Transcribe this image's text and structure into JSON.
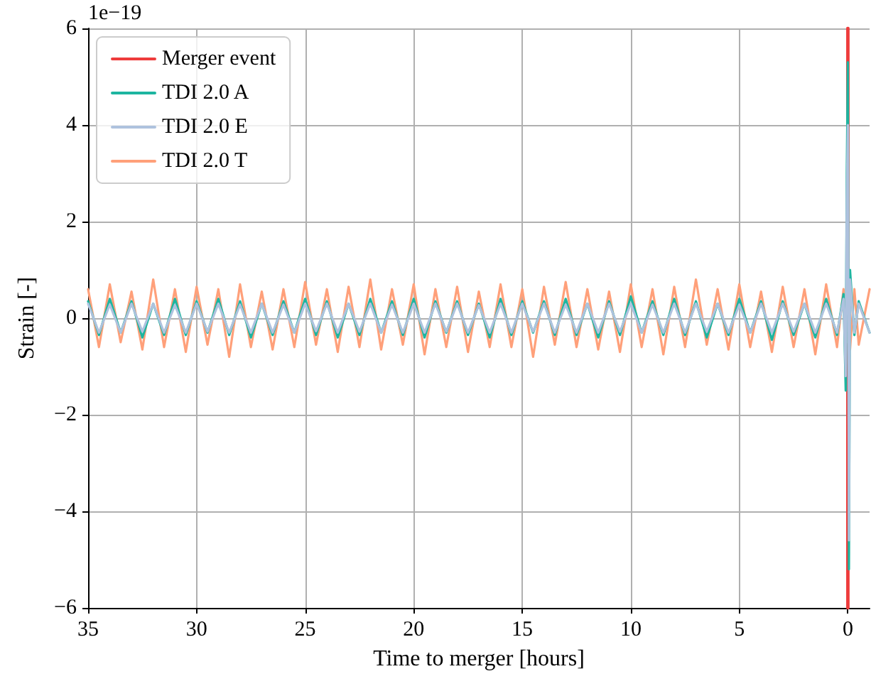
{
  "chart_data": {
    "type": "line",
    "xlabel": "Time to merger [hours]",
    "ylabel": "Strain [-]",
    "annotations": [
      "1e−19"
    ],
    "xlim": [
      35,
      -1
    ],
    "xticks": [
      35,
      30,
      25,
      20,
      15,
      10,
      5,
      0
    ],
    "ylim": [
      -6,
      6
    ],
    "yticks": [
      {
        "value": -6,
        "label": "−6"
      },
      {
        "value": -4,
        "label": "−4"
      },
      {
        "value": -2,
        "label": "−2"
      },
      0,
      2,
      4,
      6
    ],
    "grid": true,
    "legend": "top left",
    "marker": "none",
    "line_style": "solid",
    "x": [
      35,
      34.5,
      34,
      33.5,
      33,
      32.5,
      32,
      31.5,
      31,
      30.5,
      30,
      29.5,
      29,
      28.5,
      28,
      27.5,
      27,
      26.5,
      26,
      25.5,
      25,
      24.5,
      24,
      23.5,
      23,
      22.5,
      22,
      21.5,
      21,
      20.5,
      20,
      19.5,
      19,
      18.5,
      18,
      17.5,
      17,
      16.5,
      16,
      15.5,
      15,
      14.5,
      14,
      13.5,
      13,
      12.5,
      12,
      11.5,
      11,
      10.5,
      10,
      9.5,
      9,
      8.5,
      8,
      7.5,
      7,
      6.5,
      6,
      5.5,
      5,
      4.5,
      4,
      3.5,
      3,
      2.5,
      2,
      1.5,
      1,
      0.5,
      0.2,
      0.1,
      0.05,
      0,
      -0.05,
      -0.1,
      -0.3,
      -0.5,
      -1
    ],
    "series": [
      {
        "name": "Merger event",
        "color": "#ee3b3b",
        "x": [
          0,
          0
        ],
        "values": [
          -6,
          6
        ]
      },
      {
        "name": "TDI 2.0 A",
        "color": "#1db5a0",
        "values": [
          0.35,
          -0.35,
          0.4,
          -0.3,
          0.35,
          -0.4,
          0.3,
          -0.35,
          0.4,
          -0.35,
          0.35,
          -0.3,
          0.4,
          -0.35,
          0.35,
          -0.4,
          0.3,
          -0.35,
          0.35,
          -0.3,
          0.4,
          -0.35,
          0.35,
          -0.4,
          0.3,
          -0.35,
          0.4,
          -0.3,
          0.35,
          -0.35,
          0.4,
          -0.4,
          0.35,
          -0.3,
          0.35,
          -0.35,
          0.3,
          -0.4,
          0.4,
          -0.35,
          0.35,
          -0.3,
          0.35,
          -0.35,
          0.4,
          -0.35,
          0.3,
          -0.4,
          0.35,
          -0.35,
          0.45,
          -0.3,
          0.35,
          -0.35,
          0.4,
          -0.35,
          0.35,
          -0.4,
          0.3,
          -0.35,
          0.4,
          -0.3,
          0.35,
          -0.45,
          0.35,
          -0.35,
          0.3,
          -0.4,
          0.4,
          -0.35,
          0.5,
          -1.5,
          3.0,
          5.3,
          -5.2,
          1.0,
          -0.35,
          0.35,
          -0.3
        ]
      },
      {
        "name": "TDI 2.0 E",
        "color": "#aec2de",
        "values": [
          0.3,
          -0.3,
          0.28,
          -0.3,
          0.3,
          -0.28,
          0.3,
          -0.3,
          0.27,
          -0.3,
          0.3,
          -0.28,
          0.3,
          -0.3,
          0.28,
          -0.3,
          0.3,
          -0.3,
          0.28,
          -0.3,
          0.3,
          -0.27,
          0.3,
          -0.3,
          0.3,
          -0.28,
          0.3,
          -0.3,
          0.28,
          -0.3,
          0.3,
          -0.3,
          0.3,
          -0.28,
          0.3,
          -0.3,
          0.27,
          -0.3,
          0.3,
          -0.3,
          0.3,
          -0.28,
          0.3,
          -0.3,
          0.28,
          -0.3,
          0.3,
          -0.3,
          0.3,
          -0.28,
          0.3,
          -0.3,
          0.28,
          -0.3,
          0.3,
          -0.3,
          0.3,
          -0.28,
          0.3,
          -0.3,
          0.28,
          -0.3,
          0.3,
          -0.3,
          0.3,
          -0.28,
          0.3,
          -0.3,
          0.3,
          -0.3,
          0.4,
          -1.2,
          2.5,
          4.0,
          -4.6,
          0.8,
          -0.3,
          0.3,
          -0.3
        ]
      },
      {
        "name": "TDI 2.0 T",
        "color": "#ffa07a",
        "values": [
          0.6,
          -0.6,
          0.7,
          -0.5,
          0.55,
          -0.65,
          0.8,
          -0.6,
          0.6,
          -0.7,
          0.65,
          -0.55,
          0.6,
          -0.8,
          0.7,
          -0.6,
          0.55,
          -0.65,
          0.6,
          -0.6,
          0.75,
          -0.55,
          0.6,
          -0.7,
          0.65,
          -0.6,
          0.8,
          -0.65,
          0.6,
          -0.55,
          0.7,
          -0.75,
          0.6,
          -0.6,
          0.65,
          -0.7,
          0.55,
          -0.6,
          0.7,
          -0.6,
          0.6,
          -0.8,
          0.65,
          -0.55,
          0.75,
          -0.6,
          0.6,
          -0.65,
          0.55,
          -0.7,
          0.7,
          -0.6,
          0.6,
          -0.75,
          0.65,
          -0.6,
          0.8,
          -0.55,
          0.6,
          -0.65,
          0.7,
          -0.6,
          0.55,
          -0.7,
          0.65,
          -0.6,
          0.6,
          -0.75,
          0.7,
          -0.6,
          0.6,
          -0.6,
          0.55,
          -0.5,
          0.6,
          -0.65,
          0.6,
          -0.55,
          0.6
        ]
      }
    ]
  }
}
